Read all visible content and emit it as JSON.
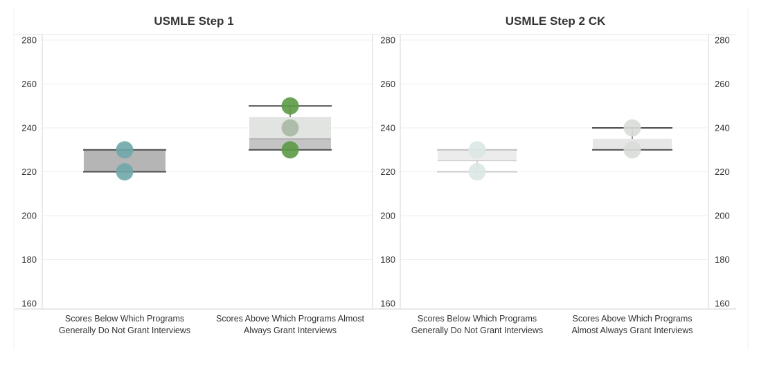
{
  "chart_data": [
    {
      "type": "box",
      "title": "USMLE Step 1",
      "ylim": [
        160,
        280
      ],
      "yticks": [
        160,
        180,
        200,
        220,
        240,
        260,
        280
      ],
      "grid": true,
      "categories": [
        {
          "label_lines": [
            "Scores Below Which Programs",
            "Generally Do Not Grant Interviews"
          ],
          "box": {
            "min": 220,
            "q1": 220,
            "median": 230,
            "q3": 230,
            "max": 230
          },
          "points": [
            220,
            230
          ],
          "point_color": "#6fa9a8"
        },
        {
          "label_lines": [
            "Scores Above Which Programs Almost",
            "Always Grant Interviews"
          ],
          "box": {
            "min": 230,
            "q1": 230,
            "median": 235,
            "q3": 245,
            "max": 250
          },
          "points": [
            230,
            240,
            250
          ],
          "point_colors": [
            "#5b9a45",
            "#a9b8a3",
            "#5b9a45"
          ]
        }
      ]
    },
    {
      "type": "box",
      "title": "USMLE Step 2 CK",
      "ylim": [
        160,
        280
      ],
      "yticks": [
        160,
        180,
        200,
        220,
        240,
        260,
        280
      ],
      "grid": true,
      "categories": [
        {
          "label_lines": [
            "Scores Below Which Programs",
            "Generally Do Not Grant Interviews"
          ],
          "box": {
            "min": 220,
            "q1": 225,
            "median": 230,
            "q3": 230,
            "max": 230
          },
          "points": [
            220,
            230
          ],
          "point_color": "#dbe7e4"
        },
        {
          "label_lines": [
            "Scores Above Which Programs",
            "Almost Always Grant Interviews"
          ],
          "box": {
            "min": 230,
            "q1": 230,
            "median": 235,
            "q3": 235,
            "max": 240
          },
          "points": [
            230,
            240
          ],
          "point_color": "#d9dcd8"
        }
      ]
    }
  ]
}
